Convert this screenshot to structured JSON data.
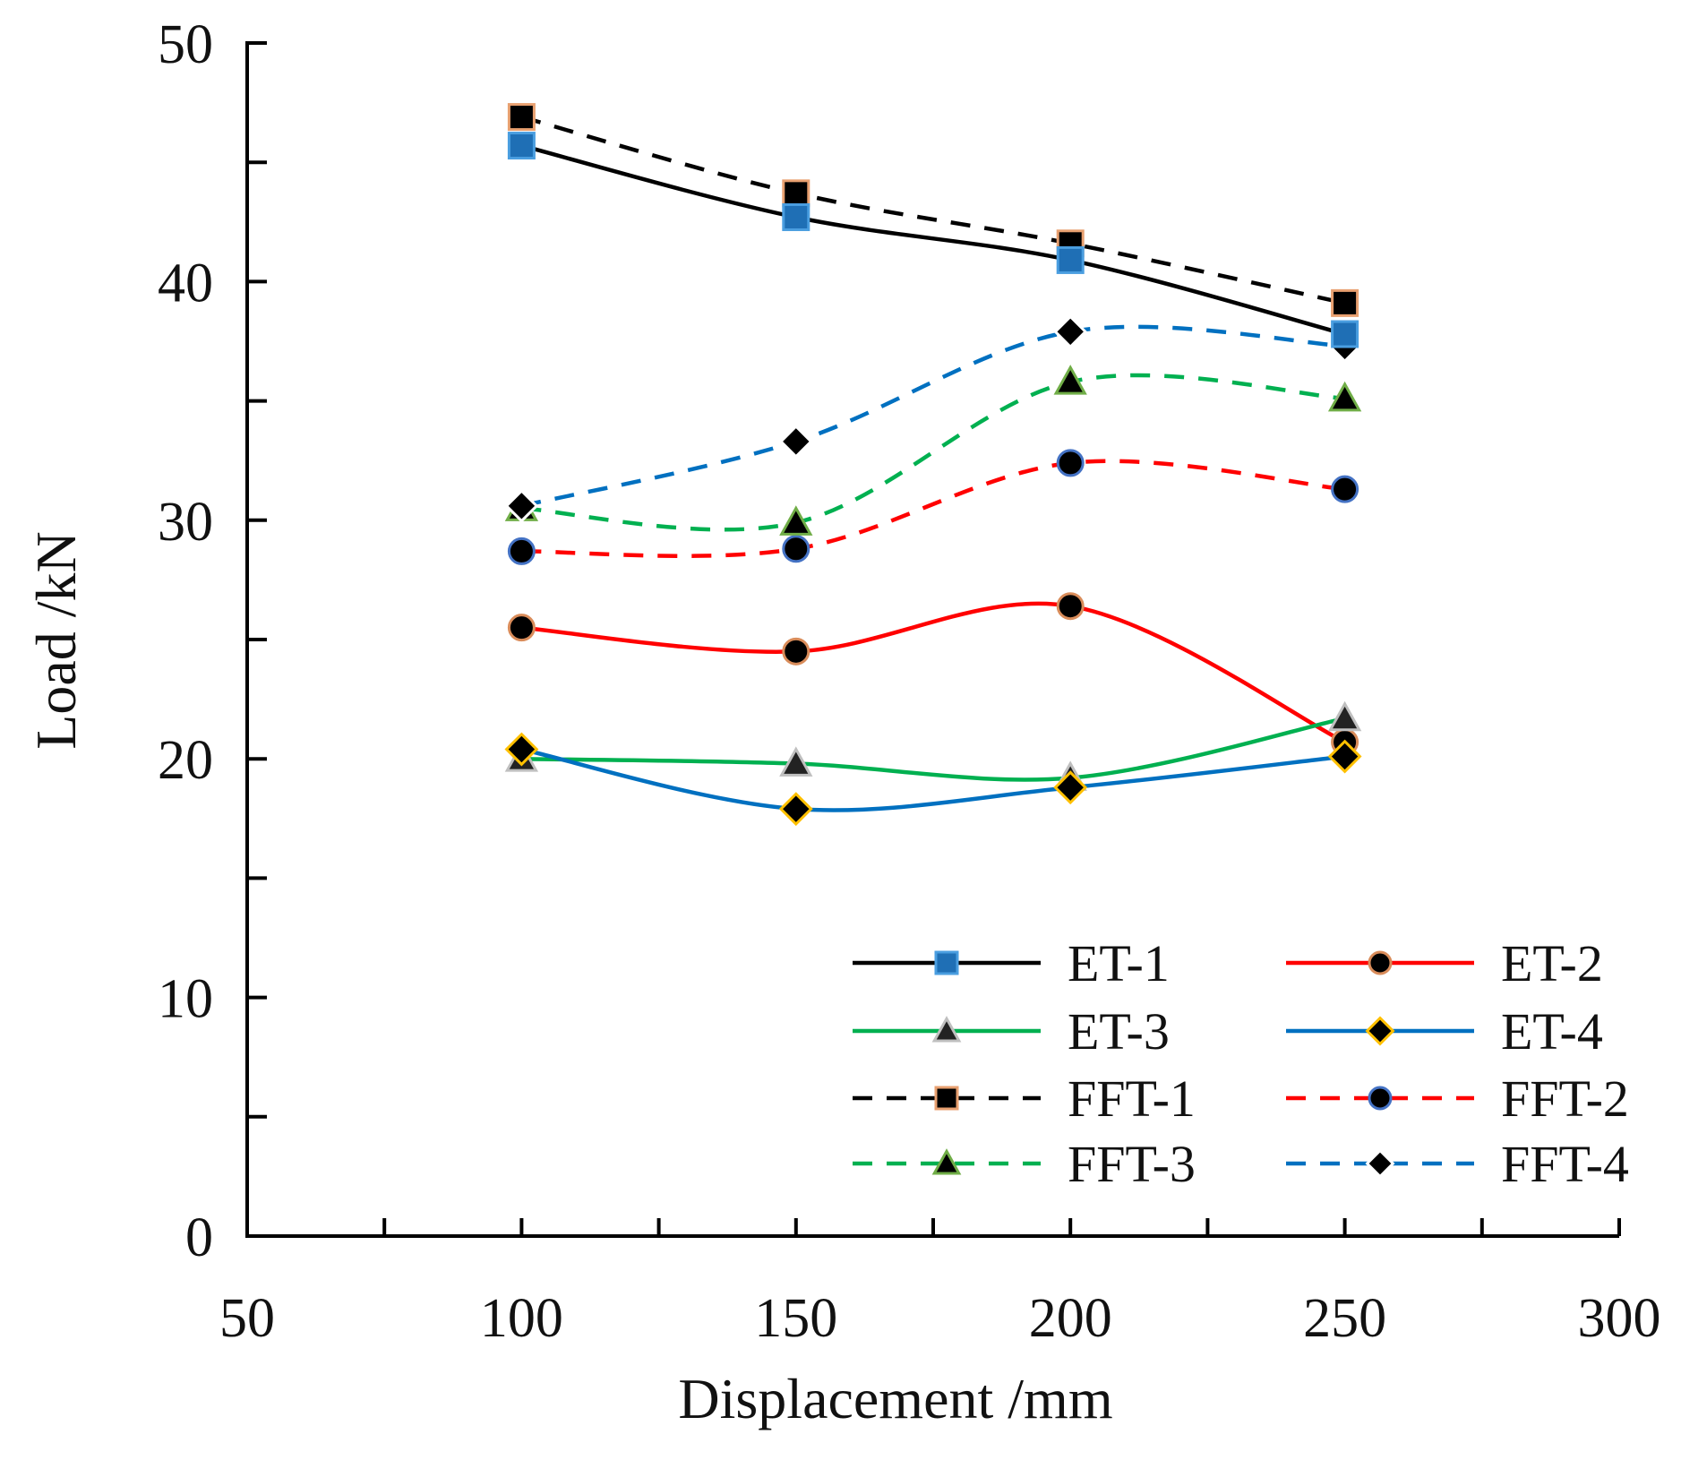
{
  "chart_data": {
    "type": "line",
    "title": "",
    "xlabel": "Displacement  /mm",
    "ylabel": "Load  /kN",
    "xlim": [
      50,
      300
    ],
    "ylim": [
      0,
      50
    ],
    "x_ticks": [
      50,
      100,
      150,
      200,
      250,
      300
    ],
    "y_ticks": [
      0,
      10,
      20,
      30,
      40,
      50
    ],
    "x_tick_labels": [
      "50",
      "100",
      "150",
      "200",
      "250",
      "300"
    ],
    "y_tick_labels": [
      "0",
      "10",
      "20",
      "30",
      "40",
      "50"
    ],
    "grid": false,
    "legend_position": "bottom-right",
    "x": [
      100,
      150,
      200,
      250
    ],
    "series": [
      {
        "name": "ET-1",
        "values": [
          45.7,
          42.7,
          40.9,
          37.8
        ],
        "color": "#000000",
        "dash": "solid",
        "marker": "square",
        "marker_fill": "#1f6fb5",
        "marker_edge": "#4a9ee0"
      },
      {
        "name": "ET-2",
        "values": [
          25.5,
          24.5,
          26.4,
          20.7
        ],
        "color": "#ff0000",
        "dash": "solid",
        "marker": "circle",
        "marker_fill": "#000000",
        "marker_edge": "#d98c5a"
      },
      {
        "name": "ET-3",
        "values": [
          20.0,
          19.8,
          19.2,
          21.7
        ],
        "color": "#00b050",
        "dash": "solid",
        "marker": "triangle",
        "marker_fill": "#222222",
        "marker_edge": "#bfbfbf"
      },
      {
        "name": "ET-4",
        "values": [
          20.4,
          17.9,
          18.8,
          20.1
        ],
        "color": "#0070c0",
        "dash": "solid",
        "marker": "diamond",
        "marker_fill": "#000000",
        "marker_edge": "#ffc000"
      },
      {
        "name": "FFT-1",
        "values": [
          46.9,
          43.7,
          41.6,
          39.1
        ],
        "color": "#000000",
        "dash": "dashed",
        "marker": "square",
        "marker_fill": "#000000",
        "marker_edge": "#e8a070"
      },
      {
        "name": "FFT-2",
        "values": [
          28.7,
          28.8,
          32.4,
          31.3
        ],
        "color": "#ff0000",
        "dash": "dashed",
        "marker": "circle",
        "marker_fill": "#000000",
        "marker_edge": "#4472c4"
      },
      {
        "name": "FFT-3",
        "values": [
          30.5,
          29.9,
          35.8,
          35.1
        ],
        "color": "#00b050",
        "dash": "dashed",
        "marker": "triangle",
        "marker_fill": "#000000",
        "marker_edge": "#70ad47"
      },
      {
        "name": "FFT-4",
        "values": [
          30.6,
          33.3,
          37.9,
          37.3
        ],
        "color": "#0070c0",
        "dash": "dashed",
        "marker": "diamond",
        "marker_fill": "#000000",
        "marker_edge": "#ffffff"
      }
    ]
  }
}
